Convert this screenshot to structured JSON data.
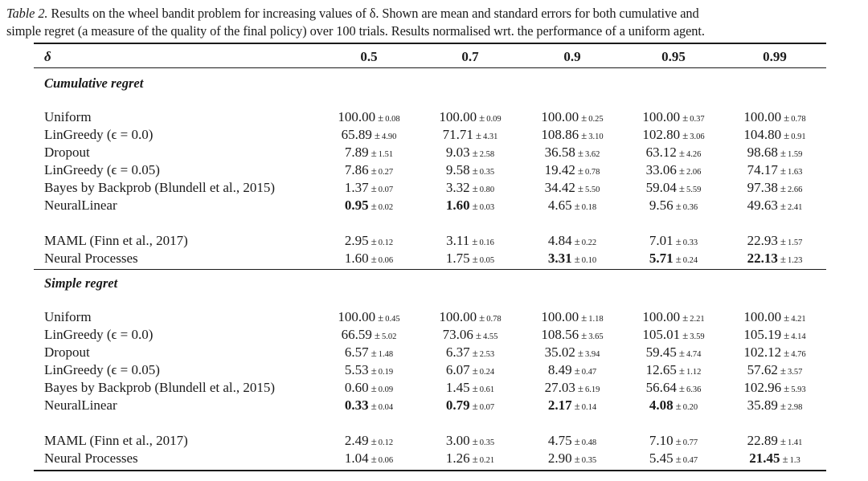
{
  "caption": {
    "label": "Table 2.",
    "line1": "Results on the wheel bandit problem for increasing values of δ. Shown are mean and standard errors for both cumulative and",
    "line2": "simple regret (a measure of the quality of the final policy) over 100 trials. Results normalised wrt. the performance of a uniform agent."
  },
  "table": {
    "delta_header": "δ",
    "columns": [
      "0.5",
      "0.7",
      "0.9",
      "0.95",
      "0.99"
    ],
    "pm": "±",
    "sections": [
      {
        "title": "Cumulative regret",
        "groups": [
          [
            {
              "name": "Uniform",
              "cells": [
                {
                  "v": "100.00",
                  "se": "0.08",
                  "bold": false
                },
                {
                  "v": "100.00",
                  "se": "0.09",
                  "bold": false
                },
                {
                  "v": "100.00",
                  "se": "0.25",
                  "bold": false
                },
                {
                  "v": "100.00",
                  "se": "0.37",
                  "bold": false
                },
                {
                  "v": "100.00",
                  "se": "0.78",
                  "bold": false
                }
              ]
            },
            {
              "name": "LinGreedy (ϵ = 0.0)",
              "cells": [
                {
                  "v": "65.89",
                  "se": "4.90",
                  "bold": false
                },
                {
                  "v": "71.71",
                  "se": "4.31",
                  "bold": false
                },
                {
                  "v": "108.86",
                  "se": "3.10",
                  "bold": false
                },
                {
                  "v": "102.80",
                  "se": "3.06",
                  "bold": false
                },
                {
                  "v": "104.80",
                  "se": "0.91",
                  "bold": false
                }
              ]
            },
            {
              "name": "Dropout",
              "cells": [
                {
                  "v": "7.89",
                  "se": "1.51",
                  "bold": false
                },
                {
                  "v": "9.03",
                  "se": "2.58",
                  "bold": false
                },
                {
                  "v": "36.58",
                  "se": "3.62",
                  "bold": false
                },
                {
                  "v": "63.12",
                  "se": "4.26",
                  "bold": false
                },
                {
                  "v": "98.68",
                  "se": "1.59",
                  "bold": false
                }
              ]
            },
            {
              "name": "LinGreedy (ϵ = 0.05)",
              "cells": [
                {
                  "v": "7.86",
                  "se": "0.27",
                  "bold": false
                },
                {
                  "v": "9.58",
                  "se": "0.35",
                  "bold": false
                },
                {
                  "v": "19.42",
                  "se": "0.78",
                  "bold": false
                },
                {
                  "v": "33.06",
                  "se": "2.06",
                  "bold": false
                },
                {
                  "v": "74.17",
                  "se": "1.63",
                  "bold": false
                }
              ]
            },
            {
              "name": "Bayes by Backprob (Blundell et al., 2015)",
              "cells": [
                {
                  "v": "1.37",
                  "se": "0.07",
                  "bold": false
                },
                {
                  "v": "3.32",
                  "se": "0.80",
                  "bold": false
                },
                {
                  "v": "34.42",
                  "se": "5.50",
                  "bold": false
                },
                {
                  "v": "59.04",
                  "se": "5.59",
                  "bold": false
                },
                {
                  "v": "97.38",
                  "se": "2.66",
                  "bold": false
                }
              ]
            },
            {
              "name": "NeuralLinear",
              "cells": [
                {
                  "v": "0.95",
                  "se": "0.02",
                  "bold": true
                },
                {
                  "v": "1.60",
                  "se": "0.03",
                  "bold": true
                },
                {
                  "v": "4.65",
                  "se": "0.18",
                  "bold": false
                },
                {
                  "v": "9.56",
                  "se": "0.36",
                  "bold": false
                },
                {
                  "v": "49.63",
                  "se": "2.41",
                  "bold": false
                }
              ]
            }
          ],
          [
            {
              "name": "MAML (Finn et al., 2017)",
              "cells": [
                {
                  "v": "2.95",
                  "se": "0.12",
                  "bold": false
                },
                {
                  "v": "3.11",
                  "se": "0.16",
                  "bold": false
                },
                {
                  "v": "4.84",
                  "se": "0.22",
                  "bold": false
                },
                {
                  "v": "7.01",
                  "se": "0.33",
                  "bold": false
                },
                {
                  "v": "22.93",
                  "se": "1.57",
                  "bold": false
                }
              ]
            },
            {
              "name": "Neural Processes",
              "cells": [
                {
                  "v": "1.60",
                  "se": "0.06",
                  "bold": false
                },
                {
                  "v": "1.75",
                  "se": "0.05",
                  "bold": false
                },
                {
                  "v": "3.31",
                  "se": "0.10",
                  "bold": true
                },
                {
                  "v": "5.71",
                  "se": "0.24",
                  "bold": true
                },
                {
                  "v": "22.13",
                  "se": "1.23",
                  "bold": true
                }
              ]
            }
          ]
        ]
      },
      {
        "title": "Simple regret",
        "groups": [
          [
            {
              "name": "Uniform",
              "cells": [
                {
                  "v": "100.00",
                  "se": "0.45",
                  "bold": false
                },
                {
                  "v": "100.00",
                  "se": "0.78",
                  "bold": false
                },
                {
                  "v": "100.00",
                  "se": "1.18",
                  "bold": false
                },
                {
                  "v": "100.00",
                  "se": "2.21",
                  "bold": false
                },
                {
                  "v": "100.00",
                  "se": "4.21",
                  "bold": false
                }
              ]
            },
            {
              "name": "LinGreedy (ϵ = 0.0)",
              "cells": [
                {
                  "v": "66.59",
                  "se": "5.02",
                  "bold": false
                },
                {
                  "v": "73.06",
                  "se": "4.55",
                  "bold": false
                },
                {
                  "v": "108.56",
                  "se": "3.65",
                  "bold": false
                },
                {
                  "v": "105.01",
                  "se": "3.59",
                  "bold": false
                },
                {
                  "v": "105.19",
                  "se": "4.14",
                  "bold": false
                }
              ]
            },
            {
              "name": "Dropout",
              "cells": [
                {
                  "v": "6.57",
                  "se": "1.48",
                  "bold": false
                },
                {
                  "v": "6.37",
                  "se": "2.53",
                  "bold": false
                },
                {
                  "v": "35.02",
                  "se": "3.94",
                  "bold": false
                },
                {
                  "v": "59.45",
                  "se": "4.74",
                  "bold": false
                },
                {
                  "v": "102.12",
                  "se": "4.76",
                  "bold": false
                }
              ]
            },
            {
              "name": "LinGreedy (ϵ = 0.05)",
              "cells": [
                {
                  "v": "5.53",
                  "se": "0.19",
                  "bold": false
                },
                {
                  "v": "6.07",
                  "se": "0.24",
                  "bold": false
                },
                {
                  "v": "8.49",
                  "se": "0.47",
                  "bold": false
                },
                {
                  "v": "12.65",
                  "se": "1.12",
                  "bold": false
                },
                {
                  "v": "57.62",
                  "se": "3.57",
                  "bold": false
                }
              ]
            },
            {
              "name": "Bayes by Backprob (Blundell et al., 2015)",
              "cells": [
                {
                  "v": "0.60",
                  "se": "0.09",
                  "bold": false
                },
                {
                  "v": "1.45",
                  "se": "0.61",
                  "bold": false
                },
                {
                  "v": "27.03",
                  "se": "6.19",
                  "bold": false
                },
                {
                  "v": "56.64",
                  "se": "6.36",
                  "bold": false
                },
                {
                  "v": "102.96",
                  "se": "5.93",
                  "bold": false
                }
              ]
            },
            {
              "name": "NeuralLinear",
              "cells": [
                {
                  "v": "0.33",
                  "se": "0.04",
                  "bold": true
                },
                {
                  "v": "0.79",
                  "se": "0.07",
                  "bold": true
                },
                {
                  "v": "2.17",
                  "se": "0.14",
                  "bold": true
                },
                {
                  "v": "4.08",
                  "se": "0.20",
                  "bold": true
                },
                {
                  "v": "35.89",
                  "se": "2.98",
                  "bold": false
                }
              ]
            }
          ],
          [
            {
              "name": "MAML (Finn et al., 2017)",
              "cells": [
                {
                  "v": "2.49",
                  "se": "0.12",
                  "bold": false
                },
                {
                  "v": "3.00",
                  "se": "0.35",
                  "bold": false
                },
                {
                  "v": "4.75",
                  "se": "0.48",
                  "bold": false
                },
                {
                  "v": "7.10",
                  "se": "0.77",
                  "bold": false
                },
                {
                  "v": "22.89",
                  "se": "1.41",
                  "bold": false
                }
              ]
            },
            {
              "name": "Neural Processes",
              "cells": [
                {
                  "v": "1.04",
                  "se": "0.06",
                  "bold": false
                },
                {
                  "v": "1.26",
                  "se": "0.21",
                  "bold": false
                },
                {
                  "v": "2.90",
                  "se": "0.35",
                  "bold": false
                },
                {
                  "v": "5.45",
                  "se": "0.47",
                  "bold": false
                },
                {
                  "v": "21.45",
                  "se": "1.3",
                  "bold": true
                }
              ]
            }
          ]
        ]
      }
    ]
  }
}
